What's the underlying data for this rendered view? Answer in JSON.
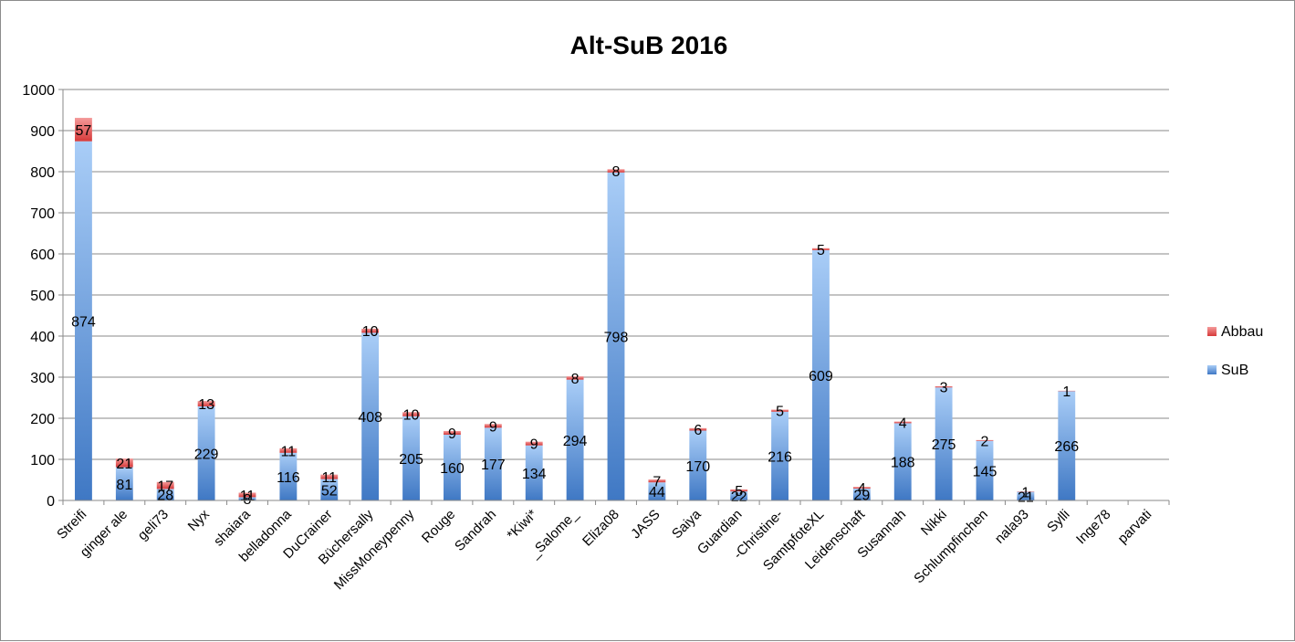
{
  "chart_data": {
    "type": "bar",
    "stacked": true,
    "title": "Alt-SuB 2016",
    "xlabel": "",
    "ylabel": "",
    "ylim": [
      0,
      1000
    ],
    "yticks": [
      0,
      100,
      200,
      300,
      400,
      500,
      600,
      700,
      800,
      900,
      1000
    ],
    "grid": true,
    "legend": "right",
    "categories": [
      "Streifi",
      "ginger ale",
      "geli73",
      "Nyx",
      "shaiara",
      "belladonna",
      "DuCrainer",
      "Büchersally",
      "MissMoneypenny",
      "Rouge",
      "Sandrah",
      "*Kiwi*",
      "_Salome_",
      "Eliza08",
      "JASS",
      "Saiya",
      "Guardian",
      "-Christine-",
      "SamtpfoteXL",
      "Leidenschaft",
      "Susannah",
      "Nikki",
      "Schlumpfinchen",
      "nala93",
      "Sylli",
      "Inge78",
      "parvati"
    ],
    "series": [
      {
        "name": "SuB",
        "color": "#4f81bd",
        "values": [
          874,
          81,
          28,
          229,
          8,
          116,
          52,
          408,
          205,
          160,
          177,
          134,
          294,
          798,
          44,
          170,
          22,
          216,
          609,
          29,
          188,
          275,
          145,
          21,
          266,
          null,
          null
        ]
      },
      {
        "name": "Abbau",
        "color": "#e05050",
        "values": [
          57,
          21,
          17,
          13,
          11,
          11,
          11,
          10,
          10,
          9,
          9,
          9,
          8,
          8,
          7,
          6,
          5,
          5,
          5,
          4,
          4,
          3,
          2,
          1,
          1,
          null,
          null
        ]
      }
    ]
  }
}
